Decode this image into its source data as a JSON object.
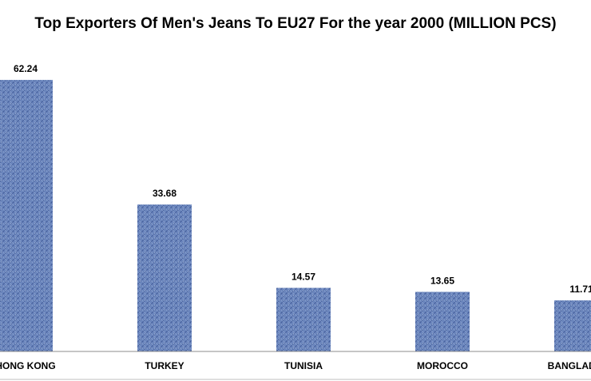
{
  "chart_data": {
    "type": "bar",
    "title": "Top Exporters Of Men's Jeans To EU27 For the year 2000 (MILLION PCS)",
    "xlabel": "",
    "ylabel": "",
    "categories": [
      "HONG KONG",
      "TURKEY",
      "TUNISIA",
      "MOROCCO",
      "BANGLADESH"
    ],
    "values": [
      62.24,
      33.68,
      14.57,
      13.65,
      11.71
    ],
    "value_labels": [
      "62.24",
      "33.68",
      "14.57",
      "13.65",
      "11.71"
    ],
    "ylim": [
      0,
      62.24
    ],
    "grid": false,
    "legend": "none",
    "bar_color": "#6b86bd",
    "bar_texture": "denim"
  }
}
